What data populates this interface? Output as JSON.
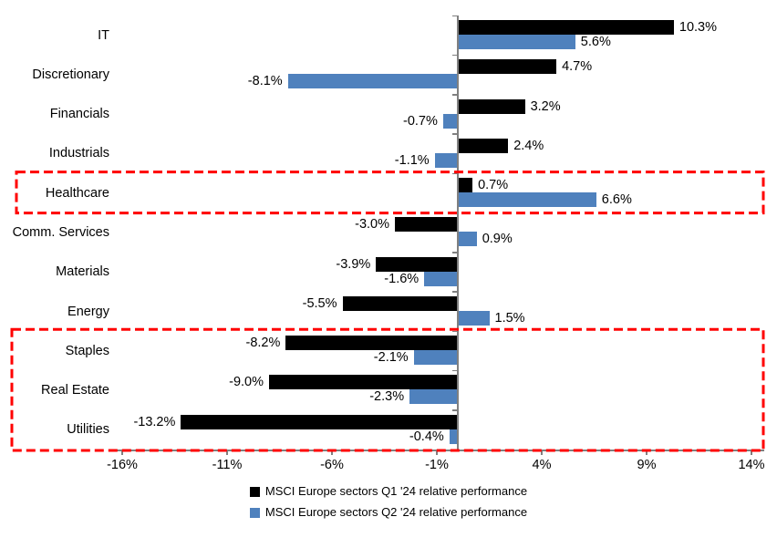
{
  "chart_data": {
    "type": "bar",
    "orientation": "horizontal",
    "categories": [
      "IT",
      "Discretionary",
      "Financials",
      "Industrials",
      "Healthcare",
      "Comm. Services",
      "Materials",
      "Energy",
      "Staples",
      "Real Estate",
      "Utilities"
    ],
    "series": [
      {
        "name": "MSCI Europe sectors Q1 '24 relative performance",
        "color": "#000000",
        "values": [
          10.3,
          4.7,
          3.2,
          2.4,
          0.7,
          -3.0,
          -3.9,
          -5.5,
          -8.2,
          -9.0,
          -13.2
        ],
        "labels": [
          "10.3%",
          "4.7%",
          "3.2%",
          "2.4%",
          "0.7%",
          "-3.0%",
          "-3.9%",
          "-5.5%",
          "-8.2%",
          "-9.0%",
          "-13.2%"
        ]
      },
      {
        "name": "MSCI Europe sectors Q2 '24 relative performance",
        "color": "#4F81BD",
        "values": [
          5.6,
          -8.1,
          -0.7,
          -1.1,
          6.6,
          0.9,
          -1.6,
          1.5,
          -2.1,
          -2.3,
          -0.4
        ],
        "labels": [
          "5.6%",
          "-8.1%",
          "-0.7%",
          "-1.1%",
          "6.6%",
          "0.9%",
          "-1.6%",
          "1.5%",
          "-2.1%",
          "-2.3%",
          "-0.4%"
        ]
      }
    ],
    "x_axis": {
      "tick_values": [
        -16,
        -11,
        -6,
        -1,
        4,
        9,
        14
      ],
      "tick_labels": [
        "-16%",
        "-11%",
        "-6%",
        "-1%",
        "4%",
        "9%",
        "14%"
      ],
      "min": -16.6,
      "max": 14.6,
      "grid": false
    },
    "highlights": [
      {
        "categories": [
          "Healthcare"
        ],
        "color": "#FF0000",
        "style": "dashed"
      },
      {
        "categories": [
          "Staples",
          "Real Estate",
          "Utilities"
        ],
        "color": "#FF0000",
        "style": "dashed"
      }
    ],
    "legend_position": "bottom",
    "axis_color": "#808080"
  }
}
